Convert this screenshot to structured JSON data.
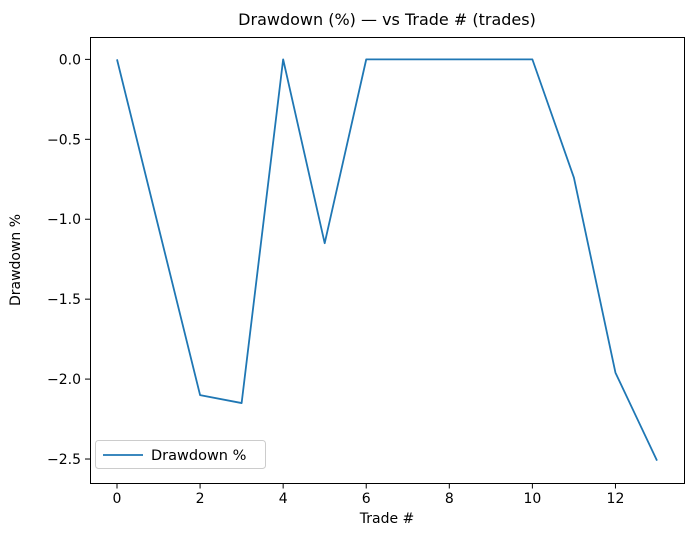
{
  "chart_data": {
    "type": "line",
    "title": "Drawdown (%) — vs Trade # (trades)",
    "xlabel": "Trade #",
    "ylabel": "Drawdown %",
    "x": [
      0,
      1,
      2,
      3,
      4,
      5,
      6,
      7,
      8,
      9,
      10,
      11,
      12,
      13
    ],
    "series": [
      {
        "name": "Drawdown %",
        "color": "#1f77b4",
        "values": [
          0.0,
          -1.05,
          -2.1,
          -2.15,
          0.0,
          -1.15,
          0.0,
          0.0,
          0.0,
          0.0,
          0.0,
          -0.74,
          -1.96,
          -2.51
        ]
      }
    ],
    "xlim": [
      -0.65,
      13.65
    ],
    "ylim": [
      -2.65,
      0.14
    ],
    "x_ticks": {
      "values": [
        0,
        2,
        4,
        6,
        8,
        10,
        12
      ],
      "labels": [
        "0",
        "2",
        "4",
        "6",
        "8",
        "10",
        "12"
      ]
    },
    "y_ticks": {
      "values": [
        0.0,
        -0.5,
        -1.0,
        -1.5,
        -2.0,
        -2.5
      ],
      "labels": [
        "0.0",
        "−0.5",
        "−1.0",
        "−1.5",
        "−2.0",
        "−2.5"
      ]
    },
    "grid": false,
    "legend": {
      "position": "lower-left",
      "entries": [
        "Drawdown %"
      ]
    },
    "colors": {
      "background": "#ffffff",
      "axis": "#000000",
      "legend_border": "#cccccc",
      "line": "#1f77b4"
    }
  }
}
